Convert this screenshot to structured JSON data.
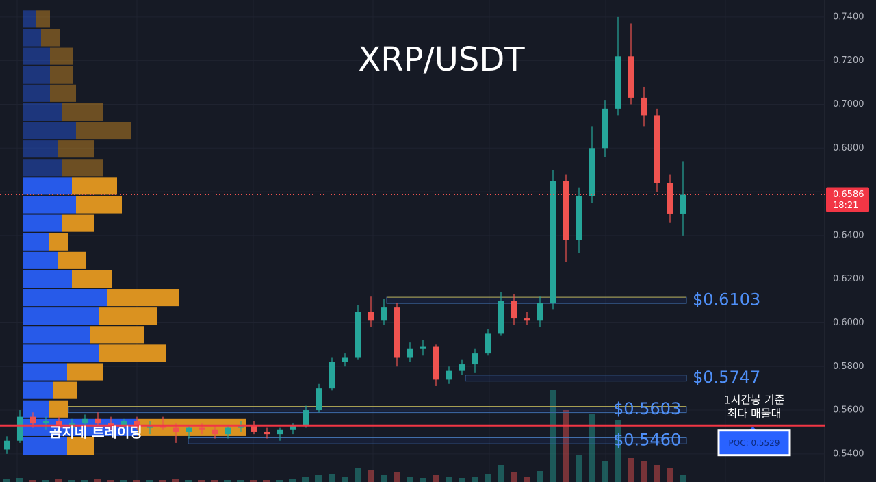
{
  "chart_data": {
    "type": "candlestick",
    "title": "XRP/USDT",
    "watermark": "곰지네 트레이딩",
    "ylim": [
      0.5271,
      0.7478
    ],
    "yticks": [
      {
        "value": 0.74,
        "label": "0.7400"
      },
      {
        "value": 0.72,
        "label": "0.7200"
      },
      {
        "value": 0.7,
        "label": "0.7000"
      },
      {
        "value": 0.68,
        "label": "0.6800"
      },
      {
        "value": 0.66,
        "label": "0.6600"
      },
      {
        "value": 0.64,
        "label": "0.6400"
      },
      {
        "value": 0.62,
        "label": "0.6200"
      },
      {
        "value": 0.6,
        "label": "0.6000"
      },
      {
        "value": 0.58,
        "label": "0.5800"
      },
      {
        "value": 0.56,
        "label": "0.5600"
      },
      {
        "value": 0.54,
        "label": "0.5400"
      }
    ],
    "up_color": "#26a69a",
    "down_color": "#ef5350",
    "candles": {
      "open": [
        0.542,
        0.546,
        0.557,
        0.554,
        0.555,
        0.552,
        0.554,
        0.556,
        0.554,
        0.553,
        0.555,
        0.552,
        0.553,
        0.552,
        0.55,
        0.552,
        0.551,
        0.549,
        0.552,
        0.553,
        0.55,
        0.549,
        0.551,
        0.553,
        0.56,
        0.57,
        0.582,
        0.584,
        0.605,
        0.601,
        0.607,
        0.584,
        0.588,
        0.589,
        0.574,
        0.578,
        0.581,
        0.586,
        0.595,
        0.61,
        0.602,
        0.601,
        0.609,
        0.665,
        0.638,
        0.658,
        0.68,
        0.698,
        0.722,
        0.703,
        0.695,
        0.664,
        0.65
      ],
      "high": [
        0.548,
        0.56,
        0.559,
        0.557,
        0.557,
        0.556,
        0.558,
        0.559,
        0.557,
        0.556,
        0.557,
        0.555,
        0.557,
        0.554,
        0.553,
        0.554,
        0.553,
        0.553,
        0.555,
        0.555,
        0.552,
        0.552,
        0.554,
        0.562,
        0.572,
        0.584,
        0.586,
        0.608,
        0.612,
        0.611,
        0.609,
        0.591,
        0.592,
        0.59,
        0.58,
        0.583,
        0.588,
        0.597,
        0.614,
        0.613,
        0.605,
        0.612,
        0.67,
        0.668,
        0.662,
        0.69,
        0.702,
        0.74,
        0.737,
        0.708,
        0.698,
        0.668,
        0.674
      ],
      "low": [
        0.54,
        0.545,
        0.552,
        0.551,
        0.548,
        0.55,
        0.552,
        0.553,
        0.551,
        0.55,
        0.551,
        0.549,
        0.551,
        0.545,
        0.547,
        0.549,
        0.547,
        0.547,
        0.55,
        0.549,
        0.547,
        0.546,
        0.549,
        0.552,
        0.559,
        0.569,
        0.58,
        0.583,
        0.598,
        0.599,
        0.58,
        0.582,
        0.585,
        0.571,
        0.572,
        0.576,
        0.577,
        0.585,
        0.594,
        0.599,
        0.599,
        0.598,
        0.606,
        0.628,
        0.632,
        0.655,
        0.676,
        0.695,
        0.7,
        0.69,
        0.66,
        0.646,
        0.64
      ],
      "close": [
        0.546,
        0.557,
        0.554,
        0.555,
        0.552,
        0.554,
        0.556,
        0.554,
        0.553,
        0.555,
        0.552,
        0.553,
        0.552,
        0.55,
        0.552,
        0.551,
        0.549,
        0.552,
        0.553,
        0.55,
        0.549,
        0.551,
        0.553,
        0.56,
        0.57,
        0.582,
        0.584,
        0.605,
        0.601,
        0.607,
        0.584,
        0.588,
        0.589,
        0.574,
        0.578,
        0.581,
        0.586,
        0.595,
        0.61,
        0.602,
        0.601,
        0.609,
        0.665,
        0.638,
        0.658,
        0.68,
        0.698,
        0.722,
        0.703,
        0.695,
        0.664,
        0.65,
        0.6586
      ],
      "volume": [
        4,
        6,
        3,
        3,
        4,
        3,
        3,
        4,
        3,
        3,
        3,
        3,
        3,
        4,
        3,
        3,
        3,
        3,
        3,
        3,
        3,
        3,
        4,
        8,
        10,
        12,
        8,
        20,
        18,
        10,
        14,
        8,
        6,
        10,
        7,
        6,
        8,
        12,
        25,
        14,
        8,
        16,
        135,
        105,
        40,
        100,
        30,
        90,
        35,
        30,
        25,
        20,
        10
      ]
    },
    "last_price": {
      "value": 0.6586,
      "countdown": "18:21"
    },
    "levels": {
      "values": [
        0.6103,
        0.5747,
        0.5603,
        0.546
      ],
      "value_labels": [
        "$0.6103",
        "$0.5747",
        "$0.5603",
        "$0.5460"
      ]
    },
    "poc": {
      "value": 0.5529,
      "label": "POC: 0.5529",
      "note": [
        "1시간봉 기준",
        "최다 매물대"
      ]
    },
    "volume_profile": {
      "bins": [
        0.539,
        0.5475,
        0.556,
        0.5645,
        0.573,
        0.5815,
        0.59,
        0.5985,
        0.607,
        0.6155,
        0.624,
        0.6325,
        0.641,
        0.6495,
        0.658,
        0.6665,
        0.675,
        0.6835,
        0.692,
        0.7005,
        0.709,
        0.7175,
        0.726,
        0.7345,
        0.743
      ],
      "buy": [
        65,
        169,
        39,
        45,
        65,
        111,
        98,
        111,
        124,
        72,
        52,
        39,
        58,
        78,
        72,
        58,
        52,
        78,
        58,
        40,
        40,
        40,
        27,
        20
      ],
      "sell": [
        40,
        157,
        28,
        34,
        53,
        99,
        79,
        85,
        105,
        59,
        40,
        28,
        47,
        67,
        66,
        60,
        53,
        80,
        60,
        38,
        33,
        33,
        27,
        20
      ],
      "value_area": [
        0.539,
        0.6665
      ],
      "buy_color": "#2962ff",
      "sell_color": "#f0a020"
    }
  }
}
